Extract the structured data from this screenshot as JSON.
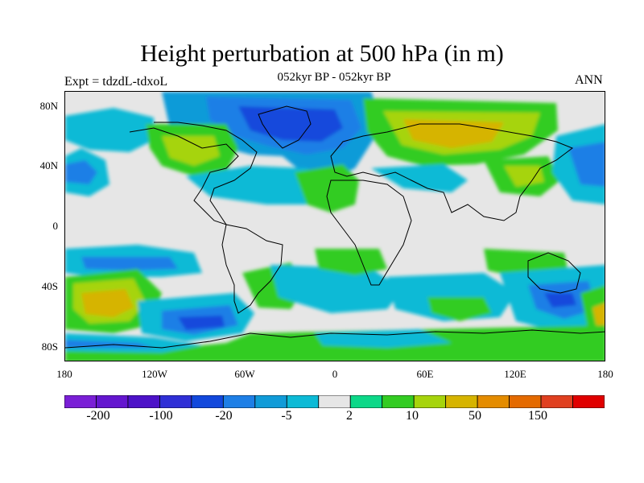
{
  "title": "Height perturbation at 500 hPa (in m)",
  "subtitle": "052kyr BP - 052kyr BP",
  "left_label": "Expt = tdzdL-tdxoL",
  "right_label": "ANN",
  "lat_labels": [
    "80N",
    "40N",
    "0",
    "40S",
    "80S"
  ],
  "lon_labels": [
    "180",
    "120W",
    "60W",
    "0",
    "60E",
    "120E",
    "180"
  ],
  "colorbar": {
    "colors": [
      "#7a1fd6",
      "#6416cf",
      "#4d12c8",
      "#2f2fd6",
      "#1248dc",
      "#1e7fe6",
      "#109bd8",
      "#0cbad6",
      "#e6e6e6",
      "#0cd888",
      "#33cc22",
      "#a6d40c",
      "#d6b400",
      "#e48c00",
      "#e46a00",
      "#e04020",
      "#e00000"
    ],
    "labels": [
      "-200",
      "-100",
      "-20",
      "-5",
      "2",
      "10",
      "50",
      "150"
    ]
  },
  "chart_data": {
    "type": "heatmap",
    "title": "Height perturbation at 500 hPa (in m)",
    "subtitle": "052kyr BP - 052kyr BP",
    "projection": "cylindrical-equidistant",
    "lon_range": [
      -180,
      180
    ],
    "lat_range": [
      -90,
      90
    ],
    "contour_levels": [
      -200,
      -150,
      -100,
      -50,
      -20,
      -10,
      -5,
      -2,
      2,
      5,
      10,
      20,
      50,
      100,
      150,
      200
    ],
    "background_color": "#e6e6e6"
  }
}
